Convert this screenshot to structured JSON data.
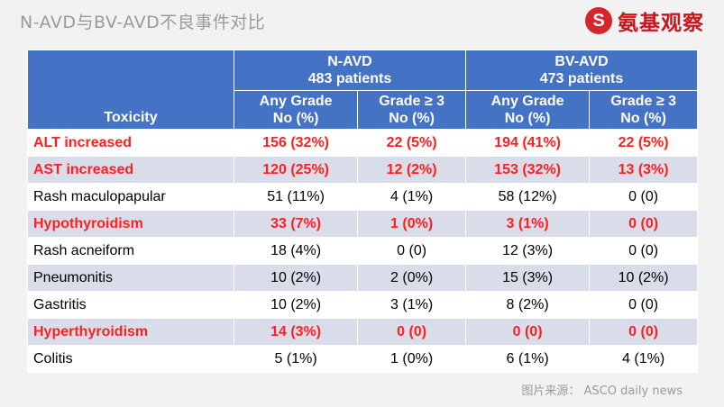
{
  "title": "N-AVD与BV-AVD不良事件对比",
  "logo": {
    "mark": "S",
    "text": "氨基观察",
    "icon": "logo-s-icon",
    "color": "#c8161e"
  },
  "colors": {
    "header": "#4472c4",
    "row_alt": "#d9dde9",
    "highlight": "#ff1f1f"
  },
  "table": {
    "toxicity_header": "Toxicity",
    "groups": [
      {
        "name": "N-AVD",
        "patients": "483 patients"
      },
      {
        "name": "BV-AVD",
        "patients": "473 patients"
      }
    ],
    "subheaders": [
      {
        "line1": "Any Grade",
        "line2": "No (%)"
      },
      {
        "line1": "Grade ≥ 3",
        "line2": "No (%)"
      },
      {
        "line1": "Any Grade",
        "line2": "No (%)"
      },
      {
        "line1": "Grade ≥ 3",
        "line2": "No (%)"
      }
    ],
    "rows": [
      {
        "name": "ALT increased",
        "cells": [
          "156 (32%)",
          "22 (5%)",
          "194 (41%)",
          "22 (5%)"
        ],
        "highlight": true
      },
      {
        "name": "AST increased",
        "cells": [
          "120 (25%)",
          "12 (2%)",
          "153 (32%)",
          "13 (3%)"
        ],
        "highlight": true
      },
      {
        "name": "Rash maculopapular",
        "cells": [
          "51 (11%)",
          "4 (1%)",
          "58 (12%)",
          "0 (0)"
        ],
        "highlight": false
      },
      {
        "name": "Hypothyroidism",
        "cells": [
          "33 (7%)",
          "1 (0%)",
          "3 (1%)",
          "0 (0)"
        ],
        "highlight": true
      },
      {
        "name": "Rash acneiform",
        "cells": [
          "18 (4%)",
          "0 (0)",
          "12 (3%)",
          "0 (0)"
        ],
        "highlight": false
      },
      {
        "name": "Pneumonitis",
        "cells": [
          "10 (2%)",
          "2 (0%)",
          "15 (3%)",
          "10 (2%)"
        ],
        "highlight": false
      },
      {
        "name": "Gastritis",
        "cells": [
          "10 (2%)",
          "3 (1%)",
          "8 (2%)",
          "0 (0)"
        ],
        "highlight": false
      },
      {
        "name": "Hyperthyroidism",
        "cells": [
          "14 (3%)",
          "0 (0)",
          "0 (0)",
          "0 (0)"
        ],
        "highlight": true
      },
      {
        "name": "Colitis",
        "cells": [
          "5 (1%)",
          "1 (0%)",
          "6 (1%)",
          "4 (1%)"
        ],
        "highlight": false
      }
    ]
  },
  "source": "图片来源： ASCO daily news"
}
